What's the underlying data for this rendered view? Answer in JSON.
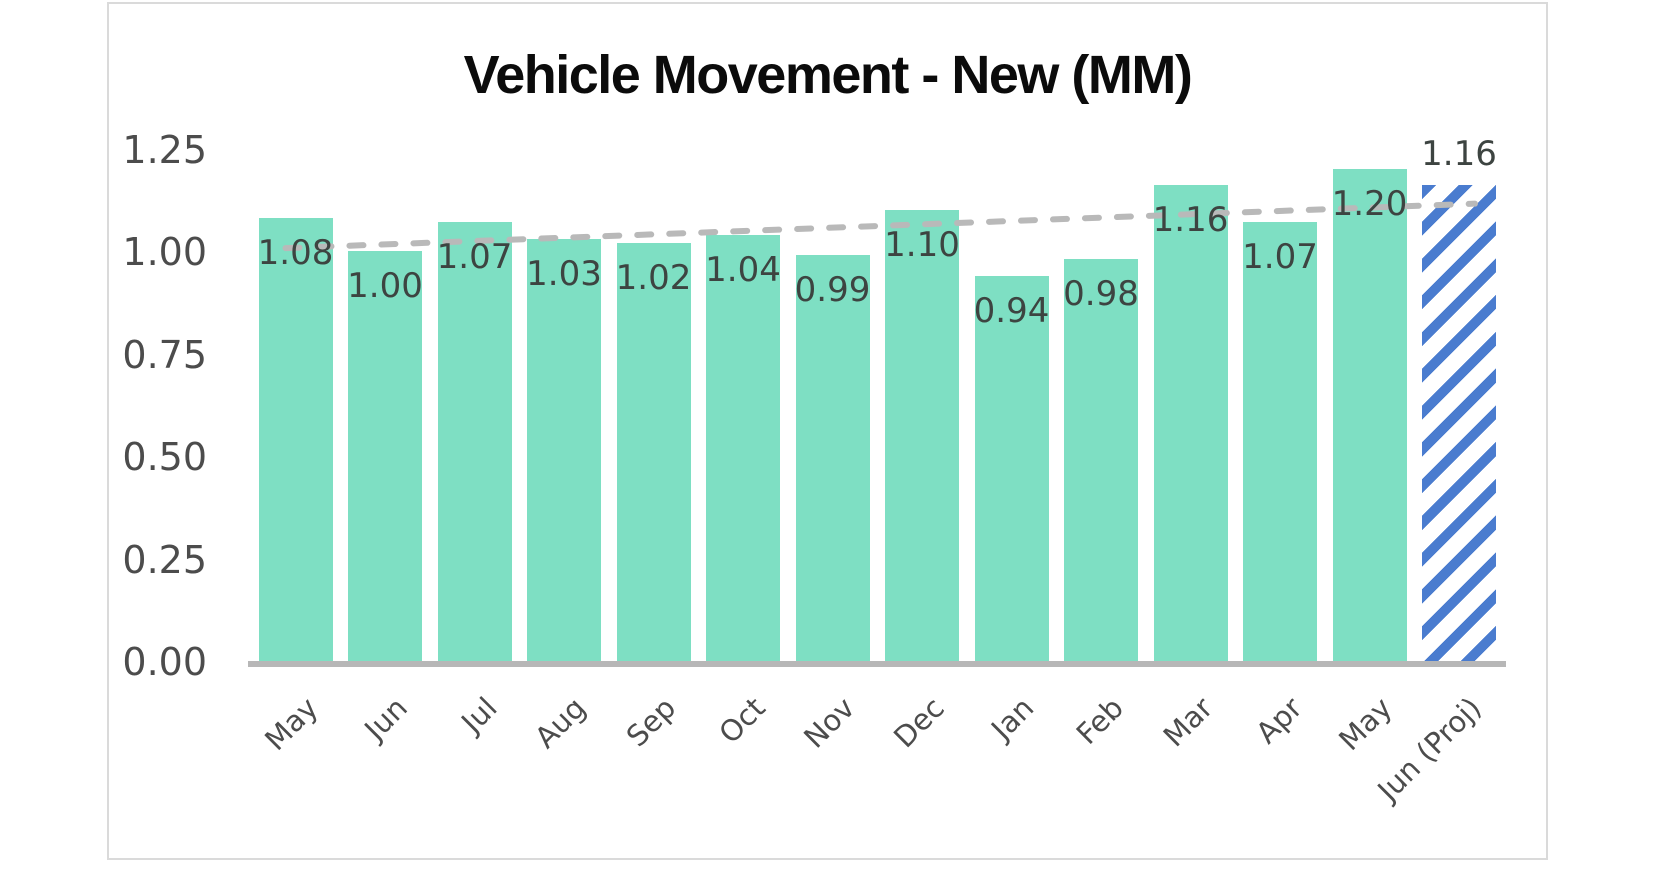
{
  "chart_data": {
    "type": "bar",
    "title": "Vehicle Movement - New (MM)",
    "categories": [
      "May",
      "Jun",
      "Jul",
      "Aug",
      "Sep",
      "Oct",
      "Nov",
      "Dec",
      "Jan",
      "Feb",
      "Mar",
      "Apr",
      "May",
      "Jun (Proj)"
    ],
    "values": [
      1.08,
      1.0,
      1.07,
      1.03,
      1.02,
      1.04,
      0.99,
      1.1,
      0.94,
      0.98,
      1.16,
      1.07,
      1.2,
      1.16
    ],
    "value_labels": [
      "1.08",
      "1.00",
      "1.07",
      "1.03",
      "1.02",
      "1.04",
      "0.99",
      "1.10",
      "0.94",
      "0.98",
      "1.16",
      "1.07",
      "1.20",
      "1.16"
    ],
    "projected_index": 13,
    "projected_style": "blue-diagonal-hatch",
    "ylim": [
      0,
      1.25
    ],
    "ytick_values": [
      1.25,
      1.0,
      0.75,
      0.5,
      0.25,
      0.0
    ],
    "ytick_labels": [
      "1.25",
      "1.00",
      "0.75",
      "0.50",
      "0.25",
      "0.00"
    ],
    "grid": false,
    "legend": "none",
    "trendline": {
      "type": "linear",
      "style": "dashed",
      "start_value": 1.008,
      "end_value": 1.114
    },
    "colors": {
      "bar": "#7EDFC3",
      "projected_stripe": "#4A7CCF",
      "projected_background": "#FFFFFF",
      "trendline": "#B9B9B9",
      "axis_line": "#B7B7B7",
      "value_label": "#3D4441",
      "tick_label": "#4C4C4C",
      "title": "#0B0B0B",
      "card_border": "#DADADA"
    }
  }
}
